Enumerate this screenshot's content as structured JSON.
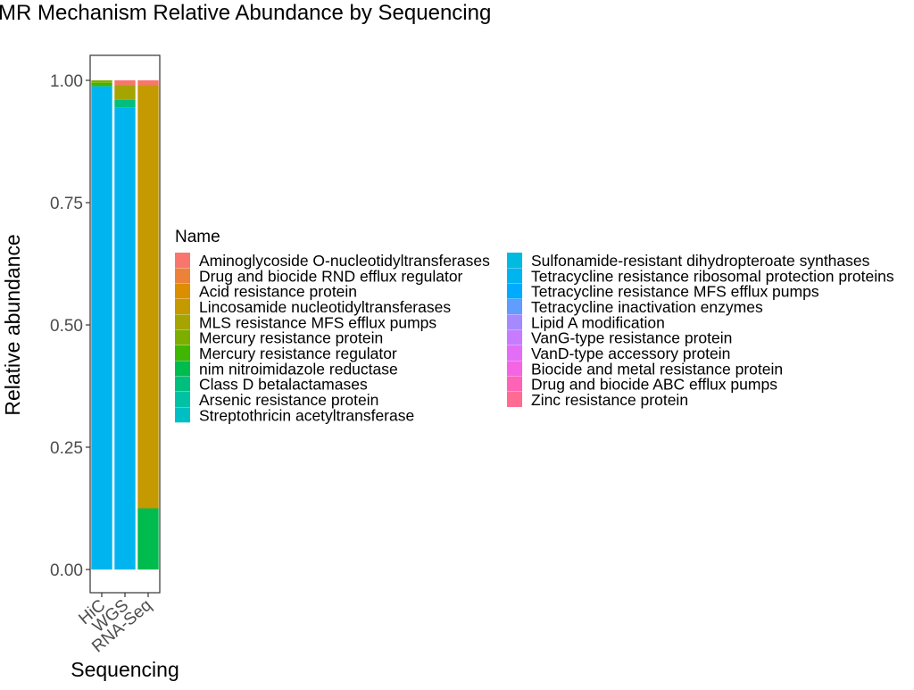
{
  "chart_data": {
    "type": "bar",
    "stacked": true,
    "title": "AMR Mechanism Relative Abundance by Sequencing",
    "xlabel": "Sequencing",
    "ylabel": "Relative abundance",
    "categories": [
      "HiC",
      "WGS",
      "RNA-Seq"
    ],
    "ylim": [
      0,
      1.05
    ],
    "yticks": [
      0.0,
      0.25,
      0.5,
      0.75,
      1.0
    ],
    "ytick_labels": [
      "0.00",
      "0.25",
      "0.50",
      "0.75",
      "1.00"
    ],
    "grid": false,
    "legend": {
      "title": "Name",
      "position": "right",
      "columns": 2
    },
    "series": [
      {
        "name": "Aminoglycoside O-nucleotidyltransferases",
        "color": "#F8766D",
        "values": [
          0,
          0.01,
          0.01
        ]
      },
      {
        "name": "Drug and biocide RND efflux regulator",
        "color": "#EC8239",
        "values": [
          0,
          0,
          0
        ]
      },
      {
        "name": "Acid resistance protein",
        "color": "#DB8E00",
        "values": [
          0,
          0,
          0
        ]
      },
      {
        "name": "Lincosamide nucleotidyltransferases",
        "color": "#C49A00",
        "values": [
          0,
          0,
          0.865
        ]
      },
      {
        "name": "MLS resistance MFS efflux pumps",
        "color": "#A6A400",
        "values": [
          0,
          0.03,
          0
        ]
      },
      {
        "name": "Mercury resistance protein",
        "color": "#7CAE00",
        "values": [
          0.005,
          0,
          0
        ]
      },
      {
        "name": "Mercury resistance regulator",
        "color": "#3FB600",
        "values": [
          0.007,
          0,
          0
        ]
      },
      {
        "name": "nim nitroimidazole reductase",
        "color": "#00BB4E",
        "values": [
          0,
          0,
          0.125
        ]
      },
      {
        "name": "Class D betalactamases",
        "color": "#00BF7D",
        "values": [
          0,
          0.015,
          0
        ]
      },
      {
        "name": "Arsenic resistance protein",
        "color": "#00C1A3",
        "values": [
          0,
          0,
          0
        ]
      },
      {
        "name": "Streptothricin acetyltransferase",
        "color": "#00BFC4",
        "values": [
          0,
          0,
          0
        ]
      },
      {
        "name": "Sulfonamide-resistant dihydropteroate synthases",
        "color": "#00BAE0",
        "values": [
          0,
          0,
          0
        ]
      },
      {
        "name": "Tetracycline resistance ribosomal protection proteins",
        "color": "#00B4EF",
        "values": [
          0.988,
          0.945,
          0
        ]
      },
      {
        "name": "Tetracycline resistance MFS efflux pumps",
        "color": "#00ABFD",
        "values": [
          0,
          0,
          0
        ]
      },
      {
        "name": "Tetracycline inactivation enzymes",
        "color": "#619CFF",
        "values": [
          0,
          0,
          0
        ]
      },
      {
        "name": "Lipid A modification",
        "color": "#A58AFF",
        "values": [
          0,
          0,
          0
        ]
      },
      {
        "name": "VanG-type resistance protein",
        "color": "#C77CFF",
        "values": [
          0,
          0,
          0
        ]
      },
      {
        "name": "VanD-type accessory protein",
        "color": "#E26EF7",
        "values": [
          0,
          0,
          0
        ]
      },
      {
        "name": "Biocide and metal resistance protein",
        "color": "#F564E3",
        "values": [
          0,
          0,
          0
        ]
      },
      {
        "name": "Drug and biocide ABC efflux pumps",
        "color": "#FF63B6",
        "values": [
          0,
          0,
          0
        ]
      },
      {
        "name": "Zinc resistance protein",
        "color": "#FF6C91",
        "values": [
          0,
          0,
          0
        ]
      }
    ]
  }
}
